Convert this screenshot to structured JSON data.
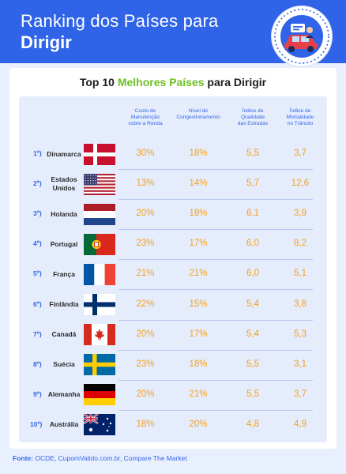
{
  "header": {
    "title_line1": "Ranking dos Países para",
    "title_line2": "Dirigir"
  },
  "card": {
    "title_prefix": "Top 10 ",
    "title_highlight": "Melhores Países",
    "title_suffix": " para Dirigir"
  },
  "columns": [
    [
      "Custo de",
      "Manutenção",
      "sobre a Renda"
    ],
    [
      "Nível de",
      "Congestionamento"
    ],
    [
      "Índice de",
      "Qualidade",
      "das Estradas"
    ],
    [
      "Índice de",
      "Mortalidade",
      "no Trânsito"
    ]
  ],
  "rows": [
    {
      "rank": "1º)",
      "country": [
        "Dinamarca"
      ],
      "flag": "denmark-flag",
      "values": [
        "30%",
        "18%",
        "5,5",
        "3,7"
      ]
    },
    {
      "rank": "2º)",
      "country": [
        "Estados",
        "Unidos"
      ],
      "flag": "usa-flag",
      "values": [
        "13%",
        "14%",
        "5,7",
        "12,6"
      ]
    },
    {
      "rank": "3º)",
      "country": [
        "Holanda"
      ],
      "flag": "netherlands-flag",
      "values": [
        "20%",
        "18%",
        "6,1",
        "3,9"
      ]
    },
    {
      "rank": "4º)",
      "country": [
        "Portugal"
      ],
      "flag": "portugal-flag",
      "values": [
        "23%",
        "17%",
        "6,0",
        "8,2"
      ]
    },
    {
      "rank": "5º)",
      "country": [
        "França"
      ],
      "flag": "france-flag",
      "values": [
        "21%",
        "21%",
        "6,0",
        "5,1"
      ]
    },
    {
      "rank": "6º)",
      "country": [
        "Finlândia"
      ],
      "flag": "finland-flag",
      "values": [
        "22%",
        "15%",
        "5,4",
        "3,8"
      ]
    },
    {
      "rank": "7º)",
      "country": [
        "Canadá"
      ],
      "flag": "canada-flag",
      "values": [
        "20%",
        "17%",
        "5,4",
        "5,3"
      ]
    },
    {
      "rank": "8º)",
      "country": [
        "Suécia"
      ],
      "flag": "sweden-flag",
      "values": [
        "23%",
        "18%",
        "5,5",
        "3,1"
      ]
    },
    {
      "rank": "9º)",
      "country": [
        "Alemanha"
      ],
      "flag": "germany-flag",
      "values": [
        "20%",
        "21%",
        "5,5",
        "3,7"
      ]
    },
    {
      "rank": "10º)",
      "country": [
        "Austrália"
      ],
      "flag": "australia-flag",
      "values": [
        "18%",
        "20%",
        "4,8",
        "4,9"
      ]
    }
  ],
  "source": {
    "label": "Fonte:",
    "text": " OCDE, CupomValido.com.br, Compare The Market"
  },
  "colors": {
    "header_bg": "#2f63e8",
    "accent_blue": "#3468e6",
    "value_orange": "#f3a21b",
    "highlight_green": "#6cc021"
  },
  "icons": [
    "car-driver-badge-icon"
  ]
}
